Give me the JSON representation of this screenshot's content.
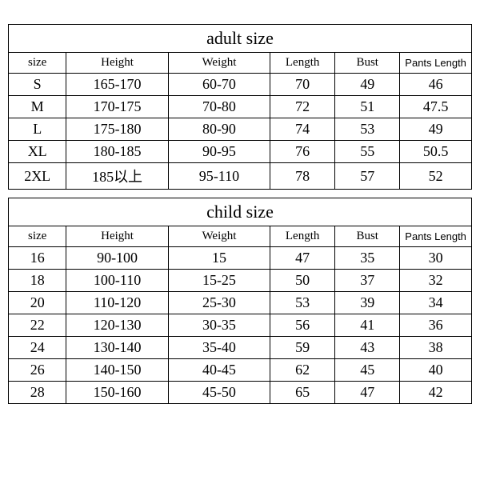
{
  "adult": {
    "title": "adult size",
    "columns": [
      "size",
      "Height",
      "Weight",
      "Length",
      "Bust",
      "Pants Length"
    ],
    "rows": [
      [
        "S",
        "165-170",
        "60-70",
        "70",
        "49",
        "46"
      ],
      [
        "M",
        "170-175",
        "70-80",
        "72",
        "51",
        "47.5"
      ],
      [
        "L",
        "175-180",
        "80-90",
        "74",
        "53",
        "49"
      ],
      [
        "XL",
        "180-185",
        "90-95",
        "76",
        "55",
        "50.5"
      ],
      [
        "2XL",
        "185以上",
        "95-110",
        "78",
        "57",
        "52"
      ]
    ]
  },
  "child": {
    "title": "child size",
    "columns": [
      "size",
      "Height",
      "Weight",
      "Length",
      "Bust",
      "Pants Length"
    ],
    "rows": [
      [
        "16",
        "90-100",
        "15",
        "47",
        "35",
        "30"
      ],
      [
        "18",
        "100-110",
        "15-25",
        "50",
        "37",
        "32"
      ],
      [
        "20",
        "110-120",
        "25-30",
        "53",
        "39",
        "34"
      ],
      [
        "22",
        "120-130",
        "30-35",
        "56",
        "41",
        "36"
      ],
      [
        "24",
        "130-140",
        "35-40",
        "59",
        "43",
        "38"
      ],
      [
        "26",
        "140-150",
        "40-45",
        "62",
        "45",
        "40"
      ],
      [
        "28",
        "150-160",
        "45-50",
        "65",
        "47",
        "42"
      ]
    ]
  }
}
